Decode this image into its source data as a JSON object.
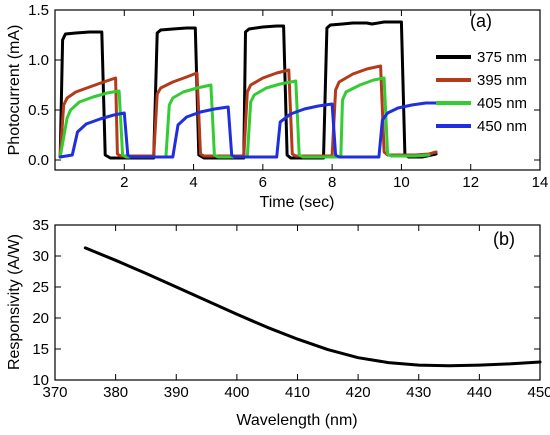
{
  "chart_data": [
    {
      "panel_label": "(a)",
      "type": "line",
      "xlabel": "Time (sec)",
      "ylabel": "Photocurrent (mA)",
      "xlim": [
        0,
        14
      ],
      "ylim": [
        -0.1,
        1.5
      ],
      "xticks": [
        2,
        4,
        6,
        8,
        10,
        12,
        14
      ],
      "yticks": [
        0.0,
        0.5,
        1.0,
        1.5
      ],
      "ytick_labels": [
        "0.0",
        "0.5",
        "1.0",
        "1.5"
      ],
      "legend_position": "right",
      "series": [
        {
          "name": "375 nm",
          "color": "#000000",
          "x": [
            0.15,
            0.22,
            0.3,
            0.6,
            1.0,
            1.35,
            1.45,
            1.6,
            2.0,
            2.5,
            2.85,
            2.95,
            3.05,
            3.4,
            3.8,
            4.05,
            4.15,
            4.3,
            4.7,
            5.1,
            5.45,
            5.5,
            5.6,
            6.0,
            6.4,
            6.6,
            6.7,
            6.8,
            7.2,
            7.6,
            7.75,
            7.85,
            7.95,
            8.3,
            8.6,
            8.9,
            9.0,
            9.15,
            9.5,
            9.85,
            10.0,
            10.1,
            10.2,
            10.6,
            11.0
          ],
          "y": [
            0.03,
            1.2,
            1.26,
            1.27,
            1.28,
            1.28,
            0.05,
            0.02,
            0.02,
            0.02,
            0.02,
            1.27,
            1.3,
            1.31,
            1.32,
            1.32,
            0.05,
            0.02,
            0.02,
            0.02,
            0.02,
            1.28,
            1.31,
            1.33,
            1.34,
            1.34,
            0.05,
            0.02,
            0.02,
            0.02,
            0.02,
            1.32,
            1.35,
            1.36,
            1.37,
            1.37,
            1.37,
            1.36,
            1.38,
            1.38,
            1.38,
            0.05,
            0.03,
            0.03,
            0.06
          ]
        },
        {
          "name": "395 nm",
          "color": "#b33a1a",
          "x": [
            0.15,
            0.25,
            0.35,
            0.6,
            1.0,
            1.4,
            1.75,
            1.8,
            1.9,
            2.2,
            2.6,
            2.85,
            2.95,
            3.05,
            3.4,
            3.8,
            4.1,
            4.2,
            4.3,
            4.6,
            5.0,
            5.45,
            5.55,
            5.65,
            6.0,
            6.4,
            6.75,
            6.85,
            6.95,
            7.3,
            7.7,
            8.0,
            8.1,
            8.2,
            8.6,
            9.0,
            9.4,
            9.5,
            9.6,
            10.0,
            10.4,
            10.8,
            11.0
          ],
          "y": [
            0.05,
            0.55,
            0.62,
            0.68,
            0.73,
            0.78,
            0.82,
            0.06,
            0.04,
            0.04,
            0.04,
            0.04,
            0.66,
            0.72,
            0.78,
            0.83,
            0.87,
            0.06,
            0.04,
            0.04,
            0.04,
            0.04,
            0.68,
            0.75,
            0.82,
            0.87,
            0.9,
            0.06,
            0.04,
            0.04,
            0.04,
            0.04,
            0.7,
            0.78,
            0.86,
            0.91,
            0.94,
            0.08,
            0.05,
            0.05,
            0.05,
            0.06,
            0.08
          ]
        },
        {
          "name": "405 nm",
          "color": "#33cc33",
          "x": [
            0.15,
            0.35,
            0.45,
            0.7,
            1.1,
            1.5,
            1.85,
            1.95,
            2.05,
            2.4,
            2.8,
            3.2,
            3.3,
            3.4,
            3.7,
            4.1,
            4.5,
            4.6,
            4.7,
            5.0,
            5.4,
            5.55,
            5.65,
            5.75,
            6.1,
            6.5,
            6.95,
            7.05,
            7.15,
            7.5,
            7.9,
            8.25,
            8.3,
            8.4,
            8.8,
            9.2,
            9.5,
            9.6,
            9.7,
            10.0,
            10.4,
            10.8
          ],
          "y": [
            0.03,
            0.42,
            0.5,
            0.58,
            0.63,
            0.67,
            0.69,
            0.05,
            0.03,
            0.03,
            0.03,
            0.03,
            0.55,
            0.62,
            0.68,
            0.72,
            0.75,
            0.05,
            0.03,
            0.03,
            0.03,
            0.03,
            0.58,
            0.65,
            0.72,
            0.76,
            0.79,
            0.05,
            0.03,
            0.03,
            0.03,
            0.03,
            0.6,
            0.68,
            0.75,
            0.8,
            0.82,
            0.06,
            0.04,
            0.04,
            0.04,
            0.05
          ]
        },
        {
          "name": "450 nm",
          "color": "#1f2fe0",
          "x": [
            0.15,
            0.5,
            0.65,
            0.9,
            1.3,
            1.7,
            2.0,
            2.1,
            2.2,
            2.6,
            3.0,
            3.2,
            3.4,
            3.55,
            3.8,
            4.2,
            4.6,
            5.0,
            5.1,
            5.2,
            5.6,
            6.0,
            6.2,
            6.4,
            6.5,
            6.8,
            7.2,
            7.6,
            8.0,
            8.1,
            8.2,
            8.6,
            9.0,
            9.35,
            9.45,
            9.6,
            9.9,
            10.3,
            10.7,
            11.0
          ],
          "y": [
            0.03,
            0.05,
            0.28,
            0.36,
            0.41,
            0.45,
            0.47,
            0.05,
            0.03,
            0.03,
            0.03,
            0.03,
            0.03,
            0.35,
            0.43,
            0.48,
            0.51,
            0.53,
            0.05,
            0.03,
            0.03,
            0.03,
            0.03,
            0.03,
            0.38,
            0.46,
            0.51,
            0.54,
            0.56,
            0.05,
            0.03,
            0.03,
            0.03,
            0.03,
            0.4,
            0.47,
            0.52,
            0.55,
            0.57,
            0.57
          ]
        }
      ]
    },
    {
      "panel_label": "(b)",
      "type": "line",
      "xlabel": "Wavelength (nm)",
      "ylabel": "Responsivity (A/W)",
      "xlim": [
        370,
        450
      ],
      "ylim": [
        10,
        35
      ],
      "xticks": [
        370,
        380,
        390,
        400,
        410,
        420,
        430,
        440,
        450
      ],
      "yticks": [
        10,
        15,
        20,
        25,
        30,
        35
      ],
      "series": [
        {
          "name": "",
          "color": "#000000",
          "x": [
            375,
            380,
            385,
            390,
            395,
            400,
            405,
            410,
            415,
            420,
            425,
            430,
            435,
            440,
            445,
            450
          ],
          "y": [
            31.3,
            29.3,
            27.2,
            25.0,
            22.8,
            20.6,
            18.5,
            16.6,
            14.9,
            13.6,
            12.8,
            12.4,
            12.3,
            12.4,
            12.6,
            12.9
          ]
        }
      ]
    }
  ]
}
